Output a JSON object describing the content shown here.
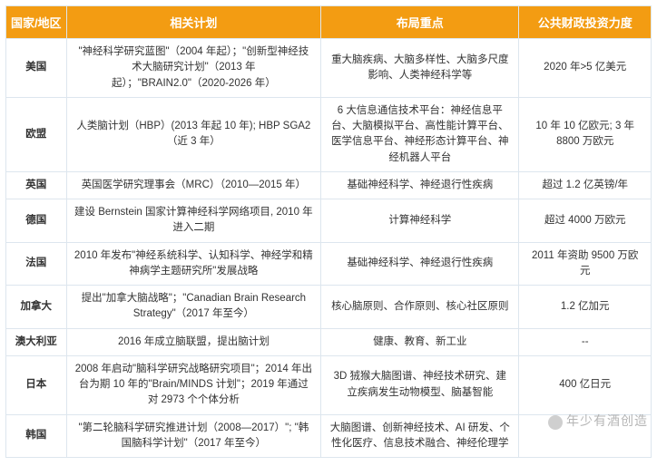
{
  "header_bg": "#f39c12",
  "header_text_color": "#ffffff",
  "border_color": "#dde6ee",
  "cell_text_color": "#333333",
  "columns": [
    "国家/地区",
    "相关计划",
    "布局重点",
    "公共财政投资力度"
  ],
  "rows": [
    {
      "region": "美国",
      "plan": "\"神经科学研究蓝图\"（2004 年起）；\"创新型神经技术大脑研究计划\"（2013 年起）；\"BRAIN2.0\"（2020-2026 年）",
      "focus": "重大脑疾病、大脑多样性、大脑多尺度影响、人类神经科学等",
      "funding": "2020 年>5 亿美元"
    },
    {
      "region": "欧盟",
      "plan": "人类脑计划（HBP）(2013 年起 10 年); HBP SGA2（近 3 年）",
      "focus": "6 大信息通信技术平台：神经信息平台、大脑模拟平台、高性能计算平台、医学信息平台、神经形态计算平台、神经机器人平台",
      "funding": "10 年 10 亿欧元; 3 年 8800 万欧元"
    },
    {
      "region": "英国",
      "plan": "英国医学研究理事会（MRC）（2010—2015 年）",
      "focus": "基础神经科学、神经退行性疾病",
      "funding": "超过 1.2 亿英镑/年"
    },
    {
      "region": "德国",
      "plan": "建设 Bernstein 国家计算神经科学网络项目, 2010 年进入二期",
      "focus": "计算神经科学",
      "funding": "超过 4000 万欧元"
    },
    {
      "region": "法国",
      "plan": "2010 年发布\"神经系统科学、认知科学、神经学和精神病学主题研究所\"发展战略",
      "focus": "基础神经科学、神经退行性疾病",
      "funding": "2011 年资助 9500 万欧元"
    },
    {
      "region": "加拿大",
      "plan": "提出\"加拿大脑战略\"；\"Canadian Brain Research Strategy\"（2017 年至今）",
      "focus": "核心脑原则、合作原则、核心社区原则",
      "funding": "1.2 亿加元"
    },
    {
      "region": "澳大利亚",
      "plan": "2016 年成立脑联盟，提出脑计划",
      "focus": "健康、教育、新工业",
      "funding": "--"
    },
    {
      "region": "日本",
      "plan": "2008 年启动\"脑科学研究战略研究项目\"；2014 年出台为期 10 年的\"Brain/MINDS 计划\"；2019 年通过对 2973 个个体分析",
      "focus": "3D 狨猴大脑图谱、神经技术研究、建立疾病发生动物模型、脑基智能",
      "funding": "400 亿日元"
    },
    {
      "region": "韩国",
      "plan": "\"第二轮脑科学研究推进计划（2008—2017）\"; \"韩国脑科学计划\"（2017 年至今）",
      "focus": "大脑图谱、创新神经技术、AI 研发、个性化医疗、信息技术融合、神经伦理学",
      "funding": ""
    }
  ],
  "watermark": "年少有酒创造"
}
